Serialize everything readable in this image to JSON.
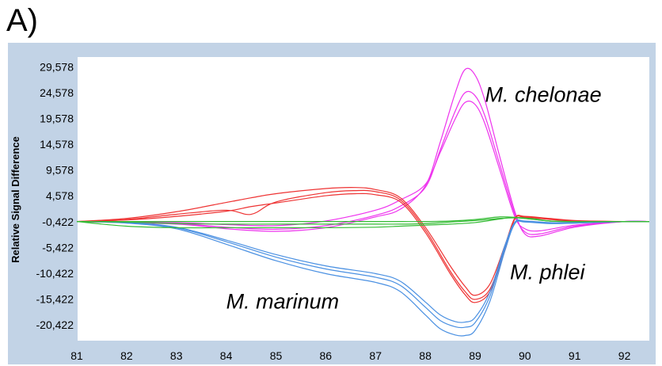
{
  "panel_label": "A)",
  "chart_data": {
    "type": "line",
    "title": "",
    "xlabel": "",
    "ylabel": "Relative Signal Difference",
    "xlim": [
      81,
      92.5
    ],
    "ylim": [
      -23.5,
      31.5
    ],
    "x_ticks": [
      "81",
      "82",
      "83",
      "84",
      "85",
      "86",
      "87",
      "88",
      "89",
      "90",
      "91",
      "92"
    ],
    "y_ticks": [
      "29,578",
      "24,578",
      "19,578",
      "14,578",
      "9,578",
      "4,578",
      "-0,422",
      "-5,422",
      "-10,422",
      "-15,422",
      "-20,422"
    ],
    "y_tick_values": [
      29.578,
      24.578,
      19.578,
      14.578,
      9.578,
      4.578,
      -0.422,
      -5.422,
      -10.422,
      -15.422,
      -20.422
    ],
    "annotations": [
      {
        "text": "M. chelonae",
        "x": 89.2,
        "y": 22.8
      },
      {
        "text": "M. phlei",
        "x": 89.7,
        "y": -11.6
      },
      {
        "text": "M. marinum",
        "x": 84.0,
        "y": -17.3
      }
    ],
    "colors": {
      "chelonae": "#ee33ee",
      "phlei": "#ee3333",
      "marinum": "#4a90e2",
      "other": "#33bb33"
    },
    "series": [
      {
        "group": "chelonae",
        "color": "#ee33ee",
        "x": [
          81,
          83,
          84,
          85,
          86,
          87,
          87.5,
          88,
          88.3,
          88.6,
          88.8,
          89.0,
          89.2,
          89.5,
          89.8,
          90.0,
          90.3,
          91,
          92,
          92.5
        ],
        "y": [
          -0.4,
          -0.9,
          -1.8,
          -2.3,
          -1.6,
          0.5,
          2.0,
          6.5,
          15.0,
          24.5,
          29.1,
          28.0,
          23.0,
          12.0,
          1.5,
          -2.8,
          -3.2,
          -1.5,
          -0.4,
          -0.4
        ]
      },
      {
        "group": "chelonae",
        "color": "#ee33ee",
        "x": [
          81,
          83,
          84,
          85,
          86,
          87,
          87.5,
          88,
          88.3,
          88.6,
          88.8,
          89.0,
          89.2,
          89.5,
          89.8,
          90.0,
          90.3,
          91,
          92,
          92.5
        ],
        "y": [
          -0.4,
          -0.8,
          -1.5,
          -1.9,
          -1.2,
          0.8,
          2.6,
          6.2,
          13.5,
          21.0,
          24.6,
          24.0,
          20.0,
          10.5,
          1.0,
          -2.4,
          -2.8,
          -1.3,
          -0.4,
          -0.4
        ]
      },
      {
        "group": "chelonae",
        "color": "#ee33ee",
        "x": [
          81,
          83,
          84,
          85,
          86,
          87,
          87.5,
          88,
          88.3,
          88.6,
          88.8,
          89.0,
          89.2,
          89.5,
          89.8,
          90.0,
          90.3,
          91,
          92,
          92.5
        ],
        "y": [
          -0.4,
          -0.6,
          -1.0,
          -1.2,
          -0.3,
          1.8,
          3.8,
          6.8,
          13.0,
          19.5,
          22.7,
          22.3,
          18.5,
          9.5,
          0.5,
          -1.8,
          -2.2,
          -1.1,
          -0.4,
          -0.4
        ]
      },
      {
        "group": "phlei",
        "color": "#ee3333",
        "x": [
          81,
          82,
          83,
          84,
          84.5,
          85,
          86,
          86.6,
          87,
          87.5,
          88,
          88.5,
          88.8,
          89.0,
          89.3,
          89.6,
          89.8,
          90.0,
          90.5,
          91,
          92,
          92.5
        ],
        "y": [
          -0.4,
          0.2,
          1.5,
          3.3,
          4.2,
          5.0,
          6.0,
          6.2,
          5.8,
          4.2,
          -1.5,
          -9.0,
          -13.0,
          -14.7,
          -12.5,
          -5.0,
          0.3,
          0.6,
          0.2,
          -0.2,
          -0.4,
          -0.4
        ]
      },
      {
        "group": "phlei",
        "color": "#ee3333",
        "x": [
          81,
          82,
          83,
          84,
          84.5,
          85,
          86,
          86.6,
          87,
          87.5,
          88,
          88.5,
          88.8,
          89.0,
          89.3,
          89.6,
          89.8,
          90.0,
          90.5,
          91,
          92,
          92.5
        ],
        "y": [
          -0.4,
          0.0,
          1.0,
          1.8,
          1.0,
          3.4,
          5.2,
          5.6,
          5.4,
          3.8,
          -2.0,
          -10.0,
          -14.0,
          -15.5,
          -13.5,
          -5.5,
          0.2,
          0.5,
          0.1,
          -0.3,
          -0.4,
          -0.4
        ]
      },
      {
        "group": "phlei",
        "color": "#ee3333",
        "x": [
          81,
          82,
          83,
          84,
          84.5,
          85,
          86,
          86.6,
          87,
          87.5,
          88,
          88.5,
          88.8,
          89.0,
          89.3,
          89.6,
          89.8,
          90.0,
          90.5,
          91,
          92,
          92.5
        ],
        "y": [
          -0.4,
          -0.1,
          0.6,
          1.6,
          2.5,
          3.2,
          4.6,
          5.0,
          4.8,
          3.4,
          -2.5,
          -10.5,
          -14.6,
          -16.1,
          -14.0,
          -6.0,
          0.1,
          0.4,
          0.0,
          -0.3,
          -0.4,
          -0.4
        ]
      },
      {
        "group": "marinum",
        "color": "#4a90e2",
        "x": [
          81,
          82,
          83,
          84,
          85,
          86,
          87,
          87.5,
          88,
          88.3,
          88.6,
          88.8,
          89.0,
          89.3,
          89.6,
          89.8,
          90.0,
          90.5,
          91,
          92,
          92.5
        ],
        "y": [
          -0.4,
          -0.6,
          -1.5,
          -4.0,
          -6.8,
          -9.0,
          -10.5,
          -12.0,
          -16.0,
          -18.5,
          -19.8,
          -19.9,
          -19.0,
          -14.0,
          -5.0,
          -0.5,
          -0.3,
          -0.6,
          -0.6,
          -0.4,
          -0.4
        ]
      },
      {
        "group": "marinum",
        "color": "#4a90e2",
        "x": [
          81,
          82,
          83,
          84,
          85,
          86,
          87,
          87.5,
          88,
          88.3,
          88.6,
          88.8,
          89.0,
          89.3,
          89.6,
          89.8,
          90.0,
          90.5,
          91,
          92,
          92.5
        ],
        "y": [
          -0.4,
          -0.6,
          -1.6,
          -4.3,
          -7.3,
          -9.6,
          -11.2,
          -12.8,
          -17.0,
          -19.6,
          -20.8,
          -20.9,
          -20.0,
          -14.8,
          -5.4,
          -0.6,
          -0.4,
          -0.7,
          -0.7,
          -0.4,
          -0.4
        ]
      },
      {
        "group": "marinum",
        "color": "#4a90e2",
        "x": [
          81,
          82,
          83,
          84,
          85,
          86,
          87,
          87.5,
          88,
          88.3,
          88.6,
          88.8,
          89.0,
          89.3,
          89.6,
          89.8,
          90.0,
          90.5,
          91,
          92,
          92.5
        ],
        "y": [
          -0.4,
          -0.7,
          -1.8,
          -4.8,
          -8.0,
          -10.5,
          -12.2,
          -14.0,
          -18.5,
          -21.2,
          -22.4,
          -22.5,
          -21.5,
          -15.8,
          -6.0,
          -0.8,
          -0.5,
          -0.8,
          -0.7,
          -0.4,
          -0.4
        ]
      },
      {
        "group": "other",
        "color": "#33bb33",
        "x": [
          81,
          82,
          83,
          84,
          85,
          86,
          87,
          87.5,
          88,
          88.5,
          89,
          89.5,
          89.8,
          90.2,
          90.5,
          91,
          92,
          92.5
        ],
        "y": [
          -0.4,
          -1.3,
          -1.6,
          -1.6,
          -1.6,
          -1.6,
          -1.5,
          -1.3,
          -1.1,
          -0.9,
          -0.6,
          0.1,
          0.4,
          0.1,
          -0.3,
          -0.4,
          -0.4,
          -0.4
        ]
      },
      {
        "group": "other",
        "color": "#33bb33",
        "x": [
          81,
          82,
          83,
          84,
          85,
          86,
          87,
          87.5,
          88,
          88.5,
          89,
          89.5,
          89.8,
          90.2,
          90.5,
          91,
          92,
          92.5
        ],
        "y": [
          -0.4,
          -0.4,
          -0.4,
          -0.4,
          -0.4,
          -0.4,
          -0.4,
          -0.4,
          -0.4,
          -0.3,
          0.0,
          0.5,
          0.4,
          0.0,
          -0.3,
          -0.4,
          -0.4,
          -0.4
        ]
      },
      {
        "group": "other",
        "color": "#33bb33",
        "x": [
          81,
          82,
          83,
          84,
          85,
          86,
          87,
          87.5,
          88,
          88.5,
          89,
          89.5,
          89.8,
          90.2,
          90.5,
          91,
          92,
          92.5
        ],
        "y": [
          -0.4,
          -0.5,
          -0.8,
          -0.9,
          -0.9,
          -0.9,
          -0.9,
          -0.9,
          -0.8,
          -0.5,
          -0.2,
          0.2,
          0.3,
          0.0,
          -0.3,
          -0.4,
          -0.4,
          -0.4
        ]
      }
    ]
  }
}
